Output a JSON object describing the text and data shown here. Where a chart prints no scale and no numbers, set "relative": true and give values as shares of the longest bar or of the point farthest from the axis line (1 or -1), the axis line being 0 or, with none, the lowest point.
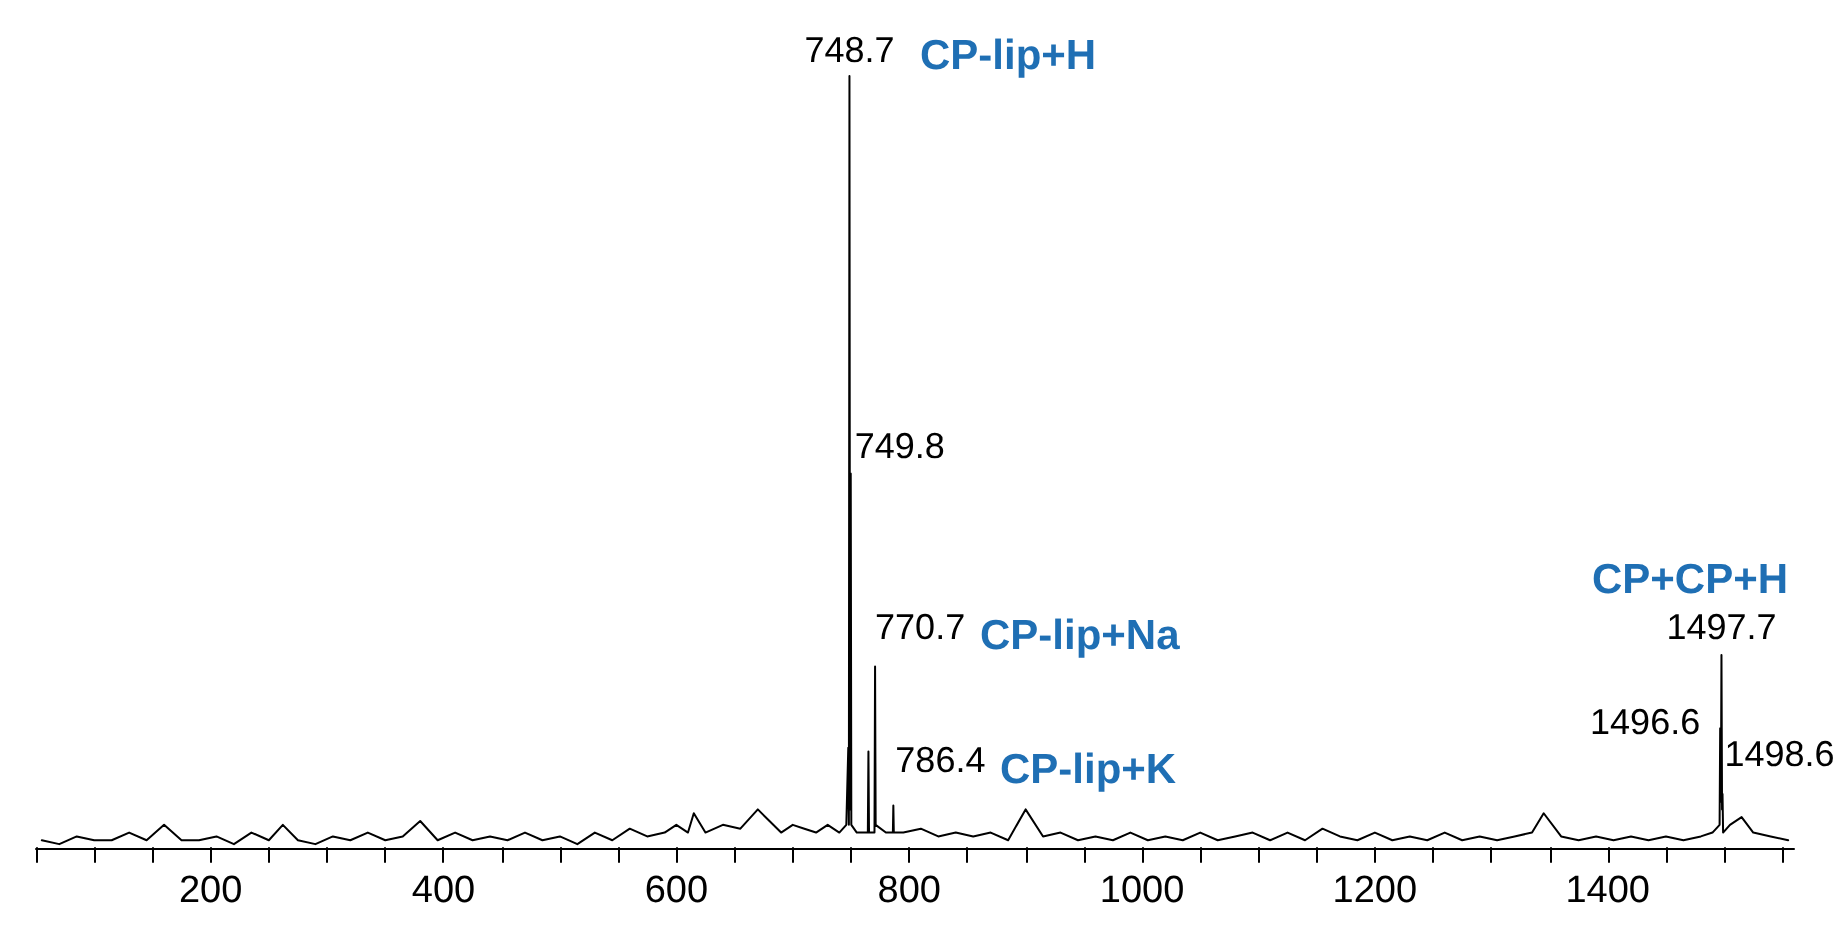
{
  "chart_data": {
    "type": "line",
    "relative": true,
    "x": [
      55,
      70,
      85,
      100,
      115,
      130,
      145,
      160,
      175,
      190,
      205,
      220,
      235,
      250,
      262,
      275,
      290,
      305,
      320,
      335,
      350,
      365,
      380,
      395,
      410,
      425,
      440,
      455,
      470,
      485,
      500,
      515,
      530,
      545,
      560,
      575,
      590,
      600,
      610,
      615,
      625,
      640,
      655,
      670,
      680,
      690,
      700,
      710,
      720,
      730,
      740,
      746,
      747.7,
      748.2,
      748.7,
      749.2,
      749.8,
      750.3,
      755,
      760,
      764.5,
      765,
      765.5,
      770.2,
      770.7,
      771.2,
      780,
      786,
      786.4,
      786.8,
      795,
      810,
      825,
      840,
      855,
      870,
      885,
      900,
      915,
      930,
      945,
      960,
      975,
      990,
      1005,
      1020,
      1035,
      1050,
      1065,
      1080,
      1095,
      1110,
      1125,
      1140,
      1155,
      1170,
      1185,
      1200,
      1215,
      1230,
      1245,
      1260,
      1275,
      1290,
      1305,
      1320,
      1335,
      1345,
      1360,
      1375,
      1390,
      1405,
      1420,
      1435,
      1450,
      1465,
      1480,
      1490,
      1496.1,
      1496.6,
      1497.2,
      1497.7,
      1498.2,
      1498.6,
      1499.1,
      1505,
      1515,
      1525,
      1540,
      1555
    ],
    "series": [
      {
        "color": "#000000",
        "values": [
          0.01,
          0.005,
          0.015,
          0.01,
          0.01,
          0.02,
          0.01,
          0.03,
          0.01,
          0.01,
          0.015,
          0.005,
          0.02,
          0.01,
          0.03,
          0.01,
          0.005,
          0.015,
          0.01,
          0.02,
          0.01,
          0.015,
          0.035,
          0.01,
          0.02,
          0.01,
          0.015,
          0.01,
          0.02,
          0.01,
          0.015,
          0.005,
          0.02,
          0.01,
          0.025,
          0.015,
          0.02,
          0.03,
          0.02,
          0.045,
          0.02,
          0.03,
          0.025,
          0.05,
          0.035,
          0.02,
          0.03,
          0.025,
          0.02,
          0.03,
          0.02,
          0.03,
          0.13,
          0.03,
          1,
          0.05,
          0.485,
          0.03,
          0.02,
          0.02,
          0.02,
          0.125,
          0.02,
          0.02,
          0.235,
          0.03,
          0.02,
          0.02,
          0.055,
          0.02,
          0.02,
          0.025,
          0.015,
          0.02,
          0.015,
          0.02,
          0.01,
          0.05,
          0.015,
          0.02,
          0.01,
          0.015,
          0.01,
          0.02,
          0.01,
          0.015,
          0.01,
          0.02,
          0.01,
          0.015,
          0.02,
          0.01,
          0.02,
          0.01,
          0.025,
          0.015,
          0.01,
          0.02,
          0.01,
          0.015,
          0.01,
          0.02,
          0.01,
          0.015,
          0.01,
          0.015,
          0.02,
          0.045,
          0.015,
          0.01,
          0.015,
          0.01,
          0.015,
          0.01,
          0.015,
          0.01,
          0.015,
          0.02,
          0.03,
          0.155,
          0.06,
          0.25,
          0.05,
          0.07,
          0.02,
          0.03,
          0.04,
          0.02,
          0.015,
          0.01
        ]
      }
    ],
    "xlim": [
      50,
      1560
    ],
    "xticks": [
      {
        "value": 50,
        "label": null
      },
      {
        "value": 100,
        "label": null
      },
      {
        "value": 150,
        "label": null
      },
      200,
      {
        "value": 250,
        "label": null
      },
      {
        "value": 300,
        "label": null
      },
      {
        "value": 350,
        "label": null
      },
      400,
      {
        "value": 450,
        "label": null
      },
      {
        "value": 500,
        "label": null
      },
      {
        "value": 550,
        "label": null
      },
      600,
      {
        "value": 650,
        "label": null
      },
      {
        "value": 700,
        "label": null
      },
      {
        "value": 750,
        "label": null
      },
      800,
      {
        "value": 850,
        "label": null
      },
      {
        "value": 900,
        "label": null
      },
      {
        "value": 950,
        "label": null
      },
      1000,
      {
        "value": 1050,
        "label": null
      },
      {
        "value": 1100,
        "label": null
      },
      {
        "value": 1150,
        "label": null
      },
      1200,
      {
        "value": 1250,
        "label": null
      },
      {
        "value": 1300,
        "label": null
      },
      {
        "value": 1350,
        "label": null
      },
      1400,
      {
        "value": 1450,
        "label": null
      },
      {
        "value": 1500,
        "label": null
      },
      {
        "value": 1550,
        "label": null
      }
    ],
    "annotations": [
      {
        "text": "748.7",
        "x": 748.7,
        "y": 1
      },
      "CP-lip+H",
      {
        "text": "749.8",
        "x": 749.8,
        "y": 0.485
      },
      {
        "text": "770.7",
        "x": 770.7,
        "y": 0.235
      },
      "CP-lip+Na",
      {
        "text": "786.4",
        "x": 786.4,
        "y": 0.055
      },
      "CP-lip+K",
      "CP+CP+H",
      {
        "text": "1497.7",
        "x": 1497.7,
        "y": 0.25
      },
      {
        "text": "1496.6",
        "x": 1496.6,
        "y": 0.155
      },
      {
        "text": "1498.6",
        "x": 1498.6,
        "y": 0.07
      }
    ]
  }
}
